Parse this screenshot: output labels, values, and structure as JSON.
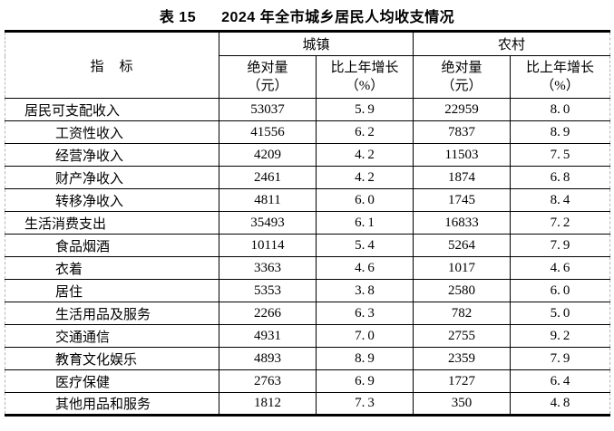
{
  "title": {
    "label": "表 15",
    "text": "2024 年全市城乡居民人均收支情况"
  },
  "table": {
    "indicator_header": "指　标",
    "groups": [
      {
        "label": "城镇"
      },
      {
        "label": "农村"
      }
    ],
    "sub_headers": [
      {
        "line1": "绝对量",
        "line2": "（元）"
      },
      {
        "line1": "比上年增长",
        "line2": "（%）"
      }
    ],
    "columns_semantic": [
      "indicator",
      "urban_absolute_yuan",
      "urban_growth_pct",
      "rural_absolute_yuan",
      "rural_growth_pct"
    ],
    "rows": [
      {
        "label": "居民可支配收入",
        "indent": 1,
        "values": [
          "53037",
          "5.9",
          "22959",
          "8.0"
        ]
      },
      {
        "label": "工资性收入",
        "indent": 2,
        "values": [
          "41556",
          "6.2",
          "7837",
          "8.9"
        ]
      },
      {
        "label": "经营净收入",
        "indent": 2,
        "values": [
          "4209",
          "4.2",
          "11503",
          "7.5"
        ]
      },
      {
        "label": "财产净收入",
        "indent": 2,
        "values": [
          "2461",
          "4.2",
          "1874",
          "6.8"
        ]
      },
      {
        "label": "转移净收入",
        "indent": 2,
        "values": [
          "4811",
          "6.0",
          "1745",
          "8.4"
        ]
      },
      {
        "label": "生活消费支出",
        "indent": 1,
        "values": [
          "35493",
          "6.1",
          "16833",
          "7.2"
        ]
      },
      {
        "label": "食品烟酒",
        "indent": 2,
        "values": [
          "10114",
          "5.4",
          "5264",
          "7.9"
        ]
      },
      {
        "label": "衣着",
        "indent": 2,
        "values": [
          "3363",
          "4.6",
          "1017",
          "4.6"
        ]
      },
      {
        "label": "居住",
        "indent": 2,
        "values": [
          "5353",
          "3.8",
          "2580",
          "6.0"
        ]
      },
      {
        "label": "生活用品及服务",
        "indent": 2,
        "values": [
          "2266",
          "6.3",
          "782",
          "5.0"
        ]
      },
      {
        "label": "交通通信",
        "indent": 2,
        "values": [
          "4931",
          "7.0",
          "2755",
          "9.2"
        ]
      },
      {
        "label": "教育文化娱乐",
        "indent": 2,
        "values": [
          "4893",
          "8.9",
          "2359",
          "7.9"
        ]
      },
      {
        "label": "医疗保健",
        "indent": 2,
        "values": [
          "2763",
          "6.9",
          "1727",
          "6.4"
        ]
      },
      {
        "label": "其他用品和服务",
        "indent": 2,
        "values": [
          "1812",
          "7.3",
          "350",
          "4.8"
        ]
      }
    ],
    "colors": {
      "text": "#000000",
      "grid_line": "#000000",
      "outer_dashed_border": "#b4b4b4",
      "background": "#ffffff"
    }
  }
}
